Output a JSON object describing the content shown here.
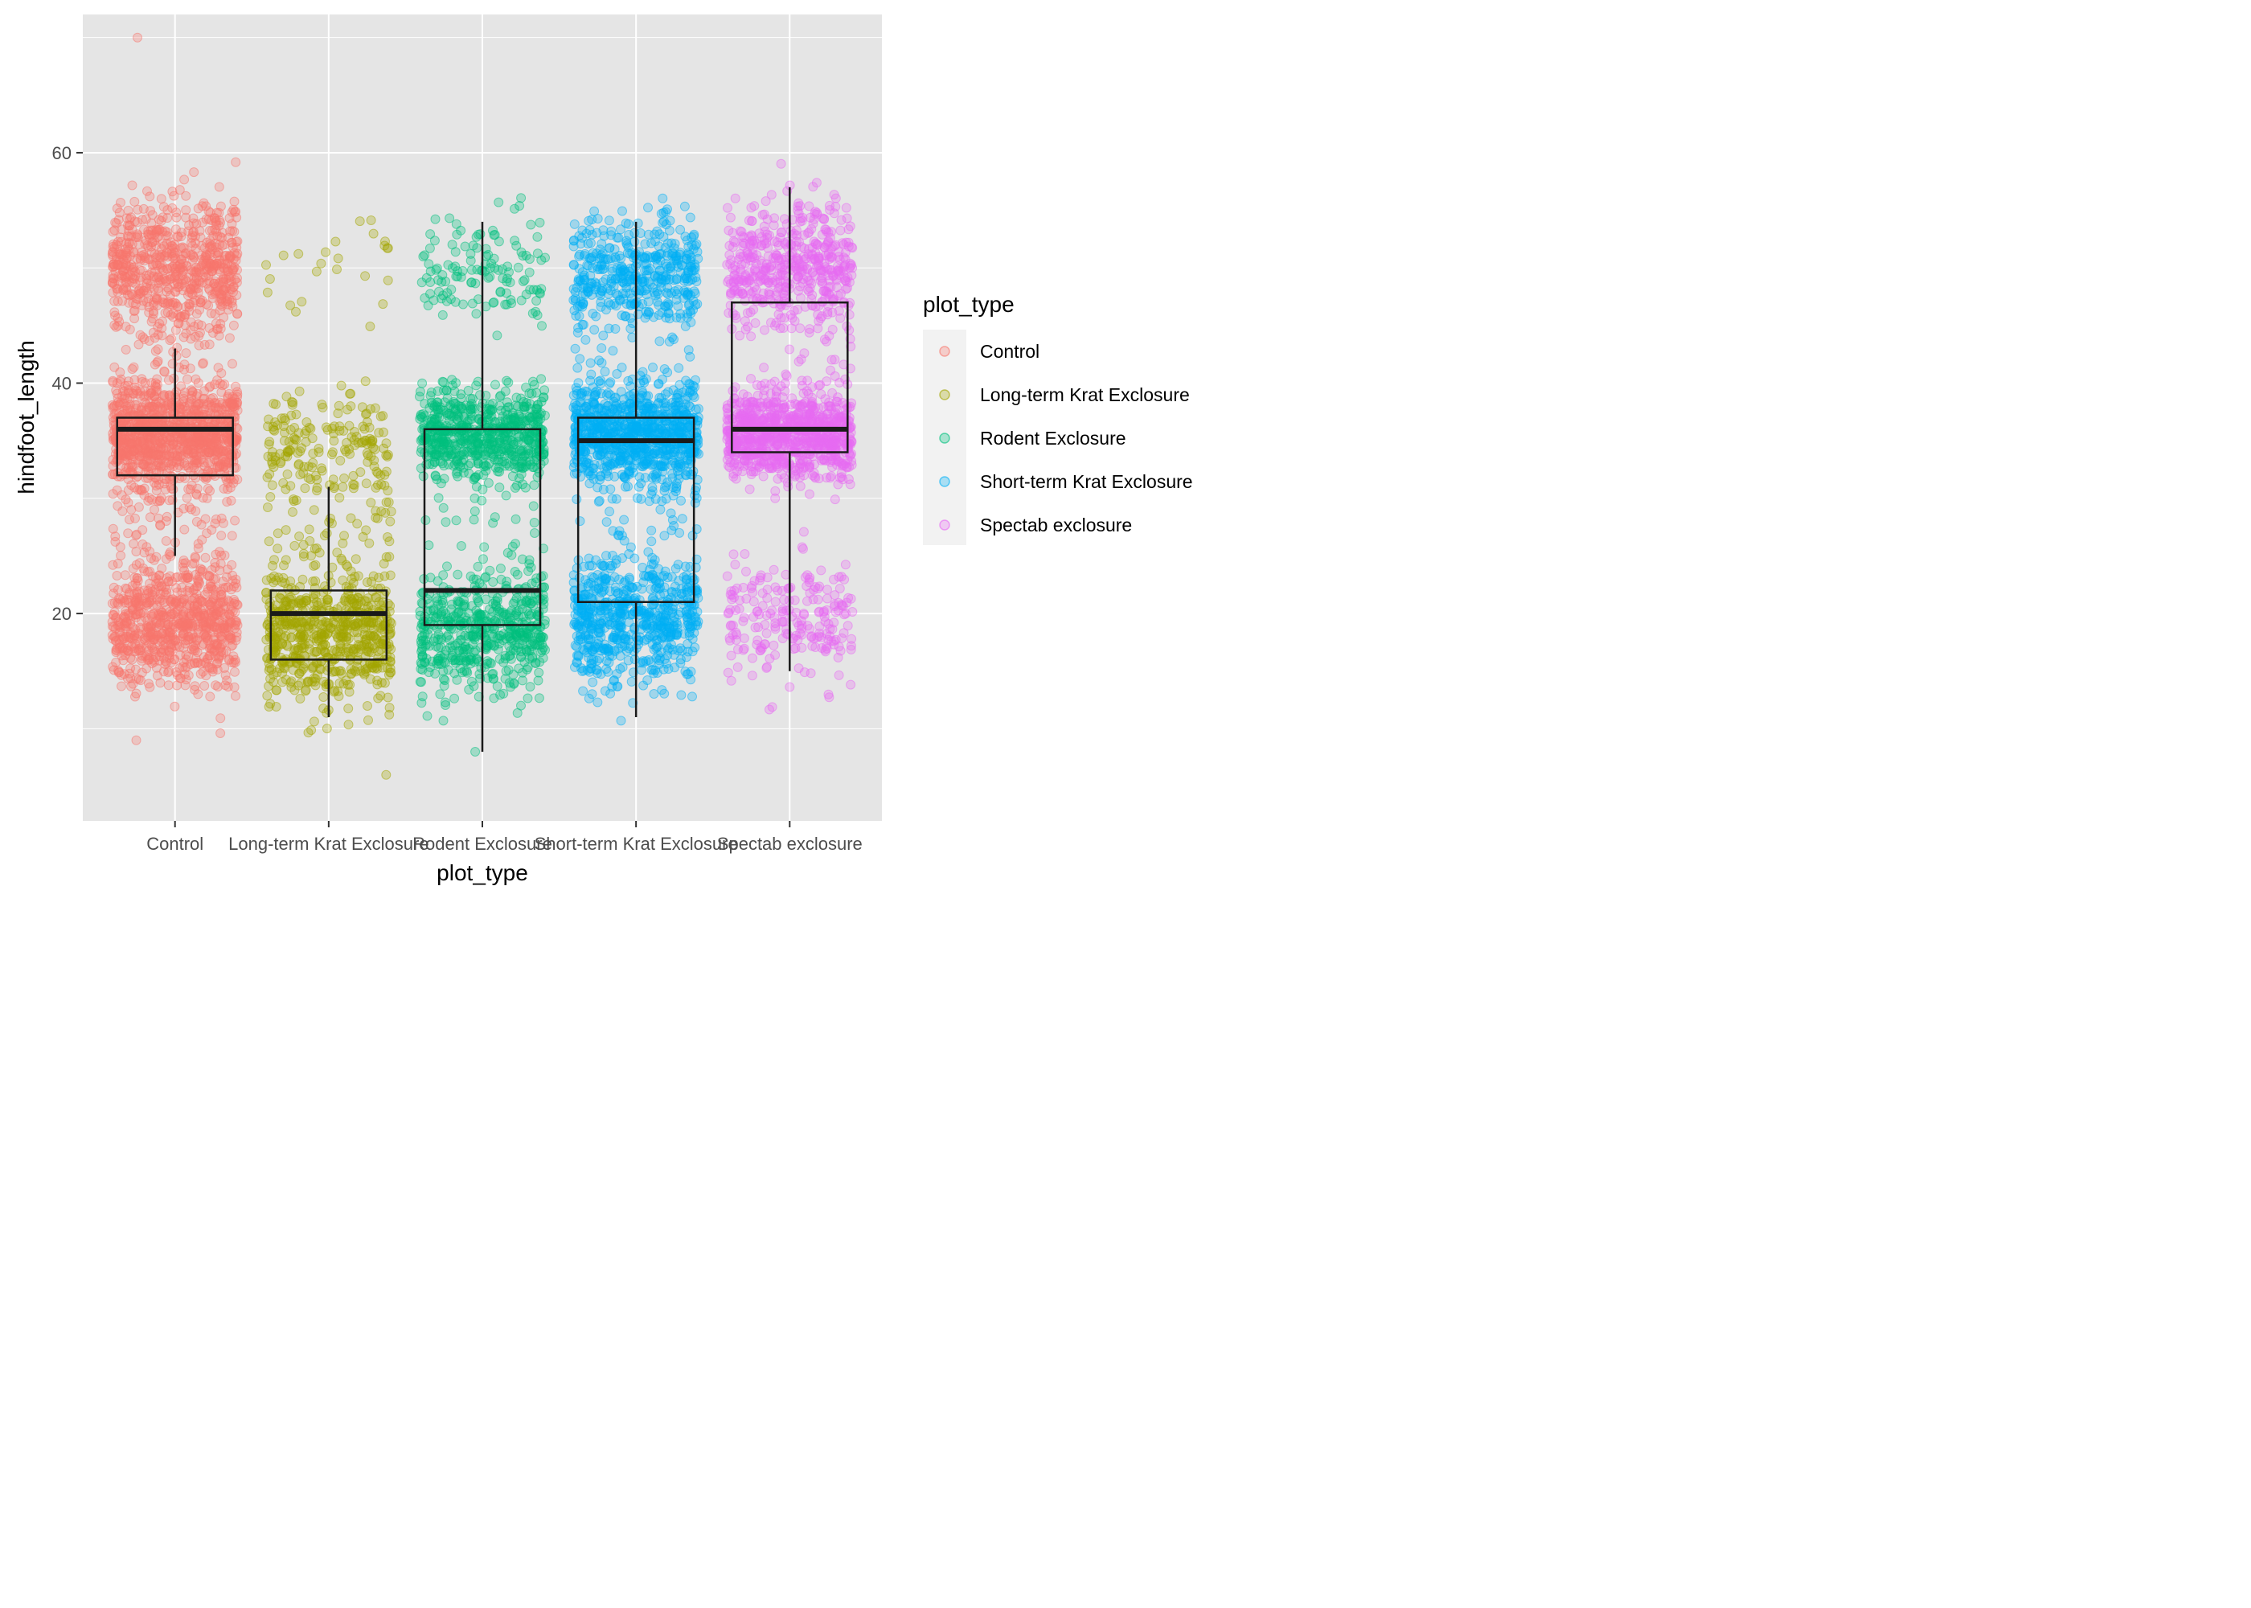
{
  "chart_data": {
    "type": "box",
    "xlabel": "plot_type",
    "ylabel": "hindfoot_length",
    "ylim": [
      2,
      72
    ],
    "yticks": [
      20,
      40,
      60
    ],
    "categories": [
      "Control",
      "Long-term Krat Exclosure",
      "Rodent Exclosure",
      "Short-term Krat Exclosure",
      "Spectab exclosure"
    ],
    "colors": [
      "#F8766D",
      "#A3A500",
      "#00BF7D",
      "#00B0F6",
      "#E76BF3"
    ],
    "grid": true,
    "legend": {
      "title": "plot_type",
      "position": "right",
      "entries": [
        "Control",
        "Long-term Krat Exclosure",
        "Rodent Exclosure",
        "Short-term Krat Exclosure",
        "Spectab exclosure"
      ]
    },
    "boxes": [
      {
        "category": "Control",
        "whisker_low": 25,
        "q1": 32,
        "median": 36,
        "q3": 37,
        "whisker_high": 43
      },
      {
        "category": "Long-term Krat Exclosure",
        "whisker_low": 11,
        "q1": 16,
        "median": 20,
        "q3": 22,
        "whisker_high": 31
      },
      {
        "category": "Rodent Exclosure",
        "whisker_low": 8,
        "q1": 19,
        "median": 22,
        "q3": 36,
        "whisker_high": 54
      },
      {
        "category": "Short-term Krat Exclosure",
        "whisker_low": 11,
        "q1": 21,
        "median": 35,
        "q3": 37,
        "whisker_high": 54
      },
      {
        "category": "Spectab exclosure",
        "whisker_low": 15,
        "q1": 34,
        "median": 36,
        "q3": 47,
        "whisker_high": 57
      }
    ],
    "point_clusters": [
      [
        {
          "center": 50,
          "spread": 3.0,
          "count": 700
        },
        {
          "center": 35.5,
          "spread": 2.2,
          "count": 1100
        },
        {
          "center": 19,
          "spread": 2.6,
          "count": 800
        },
        {
          "center": 28,
          "spread": 2.5,
          "count": 70
        },
        {
          "center": 44,
          "spread": 1.5,
          "count": 20
        }
      ],
      [
        {
          "center": 50,
          "spread": 2.5,
          "count": 25
        },
        {
          "center": 35,
          "spread": 2.2,
          "count": 170
        },
        {
          "center": 18,
          "spread": 2.8,
          "count": 650
        },
        {
          "center": 28,
          "spread": 2.5,
          "count": 60
        }
      ],
      [
        {
          "center": 50,
          "spread": 2.5,
          "count": 130
        },
        {
          "center": 35.5,
          "spread": 2.0,
          "count": 650
        },
        {
          "center": 18.5,
          "spread": 2.6,
          "count": 550
        },
        {
          "center": 28,
          "spread": 3.0,
          "count": 30
        }
      ],
      [
        {
          "center": 49.5,
          "spread": 2.6,
          "count": 450
        },
        {
          "center": 35.5,
          "spread": 2.2,
          "count": 900
        },
        {
          "center": 19.5,
          "spread": 2.6,
          "count": 650
        },
        {
          "center": 28,
          "spread": 2.5,
          "count": 30
        }
      ],
      [
        {
          "center": 50,
          "spread": 2.6,
          "count": 500
        },
        {
          "center": 35.5,
          "spread": 1.8,
          "count": 900
        },
        {
          "center": 19.5,
          "spread": 2.6,
          "count": 220
        },
        {
          "center": 42,
          "spread": 2.5,
          "count": 25
        }
      ]
    ],
    "outlier_points": [
      {
        "category": "Control",
        "y": 70
      },
      {
        "category": "Control",
        "y": 9
      },
      {
        "category": "Long-term Krat Exclosure",
        "y": 6
      },
      {
        "category": "Rodent Exclosure",
        "y": 8
      }
    ]
  }
}
